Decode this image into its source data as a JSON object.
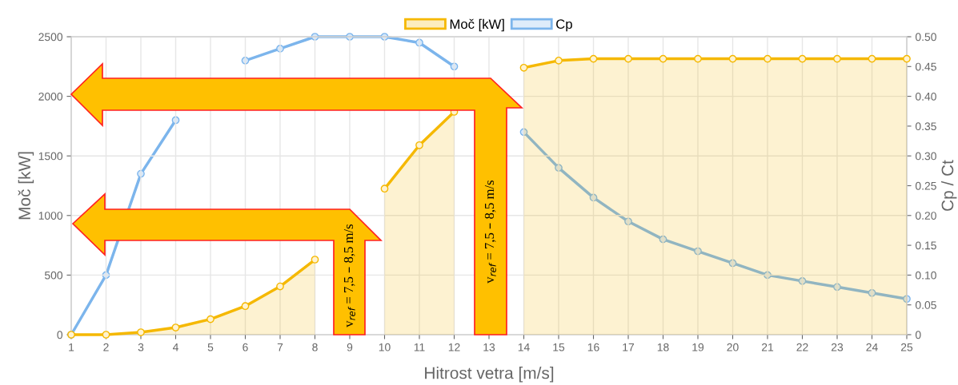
{
  "chart_data": {
    "type": "line",
    "x": [
      1,
      2,
      3,
      4,
      5,
      6,
      7,
      8,
      9,
      10,
      11,
      12,
      13,
      14,
      15,
      16,
      17,
      18,
      19,
      20,
      21,
      22,
      23,
      24,
      25
    ],
    "series": [
      {
        "name": "Moč [kW]",
        "type": "area",
        "color": "#f5b800",
        "values": [
          0,
          0,
          20,
          60,
          130,
          240,
          405,
          630,
          null,
          1225,
          1590,
          1870,
          null,
          2240,
          2300,
          2315,
          2315,
          2315,
          2315,
          2315,
          2315,
          2315,
          2315,
          2315,
          2315
        ]
      },
      {
        "name": "Cp",
        "axis": "y2",
        "color": "#7cb5ec",
        "values": [
          0,
          0.1,
          0.27,
          0.36,
          null,
          0.46,
          0.48,
          0.5,
          0.5,
          0.5,
          0.49,
          0.45,
          null,
          0.34,
          0.28,
          0.23,
          0.19,
          0.16,
          0.14,
          0.12,
          0.1,
          0.09,
          0.08,
          0.07,
          0.06
        ]
      }
    ],
    "xlabel": "Hitrost vetra [m/s]",
    "ylabel": "Moč [kW]",
    "y2label": "Cp / Ct",
    "xlim": [
      1,
      25
    ],
    "xticks": [
      1,
      2,
      3,
      4,
      5,
      6,
      7,
      8,
      9,
      10,
      11,
      12,
      13,
      14,
      15,
      16,
      17,
      18,
      19,
      20,
      21,
      22,
      23,
      24,
      25
    ],
    "ylim": [
      0,
      2500
    ],
    "yticks": [
      0,
      500,
      1000,
      1500,
      2000,
      2500
    ],
    "y2lim": [
      0,
      0.5
    ],
    "y2ticks": [
      {
        "value": 0,
        "label": "0"
      },
      {
        "value": 0.05,
        "label": "0.05"
      },
      {
        "value": 0.1,
        "label": "0.10"
      },
      {
        "value": 0.15,
        "label": "0.15"
      },
      {
        "value": 0.2,
        "label": "0.20"
      },
      {
        "value": 0.25,
        "label": "0.25"
      },
      {
        "value": 0.3,
        "label": "0.30"
      },
      {
        "value": 0.35,
        "label": "0.35"
      },
      {
        "value": 0.4,
        "label": "0.40"
      },
      {
        "value": 0.45,
        "label": "0.45"
      },
      {
        "value": 0.5,
        "label": "0.50"
      }
    ],
    "grid": true,
    "legend": "top",
    "marker": "circle",
    "annotations": [
      "v$_{ref}$ = 7,5 – 8,5 m/s",
      "v$_{ref}$ = 7,5 – 8,5 m/s"
    ]
  }
}
